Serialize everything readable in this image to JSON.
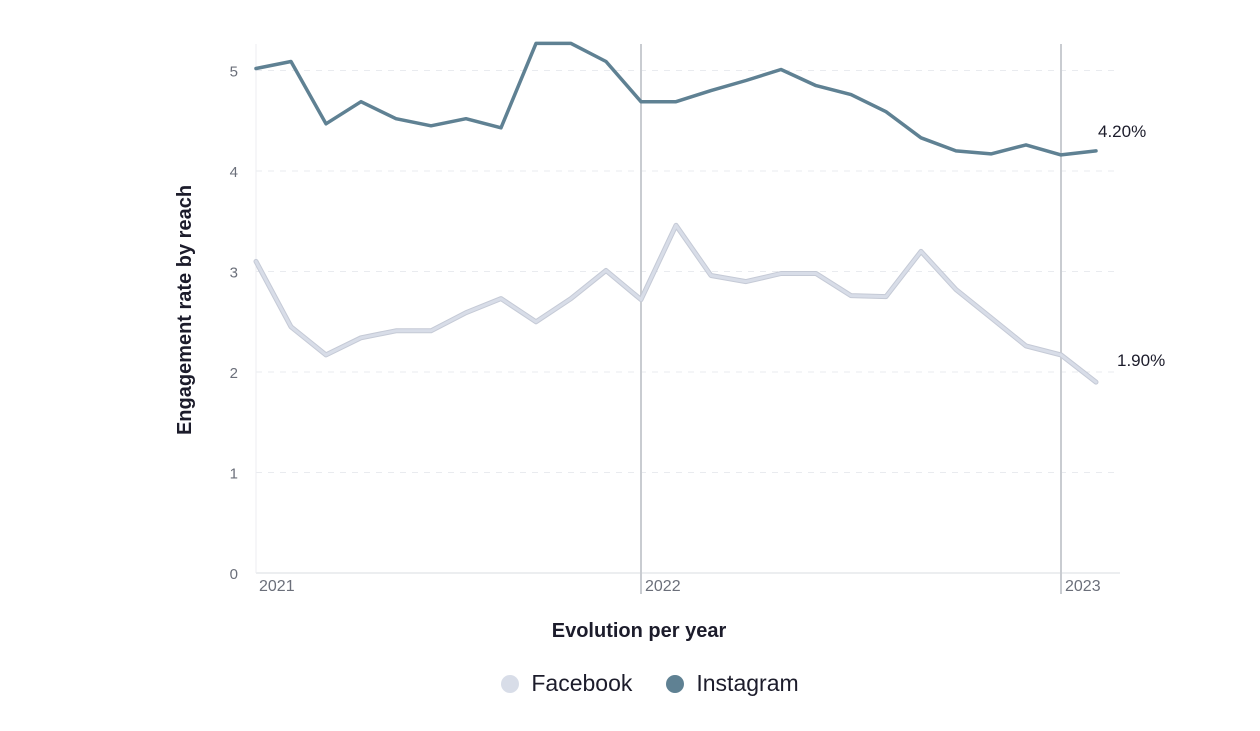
{
  "chart_data": {
    "type": "line",
    "title": "",
    "xlabel": "Evolution per year",
    "ylabel": "Engagement rate by reach",
    "ylim": [
      0,
      5.27
    ],
    "yticks": [
      "0",
      "1",
      "2",
      "3",
      "4",
      "5"
    ],
    "grid": true,
    "legend_position": "bottom",
    "year_markers": [
      {
        "label": "2021",
        "index": 0
      },
      {
        "label": "2022",
        "index": 11
      },
      {
        "label": "2023",
        "index": 23
      }
    ],
    "x_count": 25,
    "series": [
      {
        "name": "Facebook",
        "color": "#d8dde8",
        "end_label": "1.90%",
        "values": [
          3.1,
          2.45,
          2.17,
          2.34,
          2.41,
          2.41,
          2.59,
          2.73,
          2.5,
          2.73,
          3.01,
          2.72,
          3.46,
          2.96,
          2.9,
          2.98,
          2.98,
          2.76,
          2.75,
          3.2,
          2.82,
          2.54,
          2.26,
          2.17,
          1.9
        ]
      },
      {
        "name": "Instagram",
        "color": "#5f8193",
        "end_label": "4.20%",
        "values": [
          5.02,
          5.09,
          4.47,
          4.69,
          4.52,
          4.45,
          4.52,
          4.43,
          5.27,
          5.27,
          5.09,
          4.69,
          4.69,
          4.8,
          4.9,
          5.01,
          4.85,
          4.76,
          4.59,
          4.33,
          4.2,
          4.17,
          4.26,
          4.16,
          4.2
        ]
      }
    ]
  }
}
